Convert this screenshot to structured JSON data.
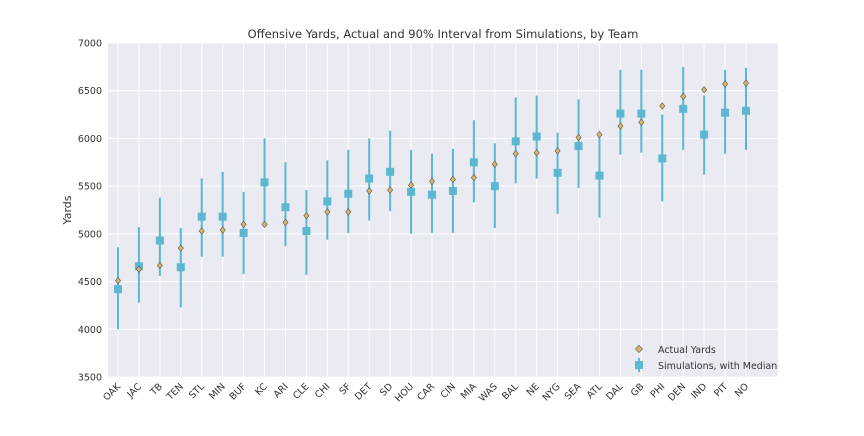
{
  "chart_data": {
    "type": "scatter",
    "title": "Offensive Yards, Actual and 90% Interval from Simulations, by Team",
    "xlabel": "",
    "ylabel": "Yards",
    "ylim": [
      3500,
      7000
    ],
    "yticks": [
      3500,
      4000,
      4500,
      5000,
      5500,
      6000,
      6500,
      7000
    ],
    "grid": true,
    "legend_position": "lower-right",
    "categories": [
      "OAK",
      "JAC",
      "TB",
      "TEN",
      "STL",
      "MIN",
      "BUF",
      "KC",
      "ARI",
      "CLE",
      "CHI",
      "SF",
      "DET",
      "SD",
      "HOU",
      "CAR",
      "CIN",
      "MIA",
      "WAS",
      "BAL",
      "NE",
      "NYG",
      "SEA",
      "ATL",
      "DAL",
      "GB",
      "PHI",
      "DEN",
      "IND",
      "PIT",
      "NO"
    ],
    "series": [
      {
        "name": "Actual Yards",
        "marker": "diamond",
        "color": "#d7b86a",
        "values": [
          4510,
          4630,
          4670,
          4850,
          5030,
          5040,
          5100,
          5100,
          5120,
          5190,
          5230,
          5230,
          5450,
          5460,
          5510,
          5550,
          5570,
          5590,
          5730,
          5840,
          5850,
          5870,
          6010,
          6040,
          6130,
          6170,
          6340,
          6440,
          6510,
          6570,
          6580
        ]
      },
      {
        "name": "Simulations, with Median",
        "marker": "square",
        "color": "#5bb8d0",
        "median": [
          4420,
          4660,
          4930,
          4650,
          5180,
          5180,
          5010,
          5540,
          5280,
          5030,
          5340,
          5420,
          5580,
          5650,
          5440,
          5410,
          5450,
          5750,
          5500,
          5970,
          6020,
          5640,
          5920,
          5610,
          6260,
          6260,
          5790,
          6310,
          6040,
          6270,
          6290
        ],
        "low": [
          4000,
          4280,
          4560,
          4230,
          4760,
          4760,
          4580,
          5100,
          4870,
          4570,
          4940,
          5010,
          5140,
          5240,
          5000,
          5010,
          5010,
          5330,
          5060,
          5530,
          5580,
          5210,
          5480,
          5170,
          5830,
          5850,
          5340,
          5880,
          5620,
          5840,
          5880
        ],
        "high": [
          4860,
          5070,
          5380,
          5060,
          5580,
          5650,
          5440,
          6000,
          5750,
          5460,
          5770,
          5880,
          6000,
          6080,
          5880,
          5840,
          5890,
          6190,
          5950,
          6430,
          6450,
          6060,
          6410,
          6060,
          6720,
          6720,
          6250,
          6750,
          6450,
          6720,
          6740
        ]
      }
    ]
  }
}
